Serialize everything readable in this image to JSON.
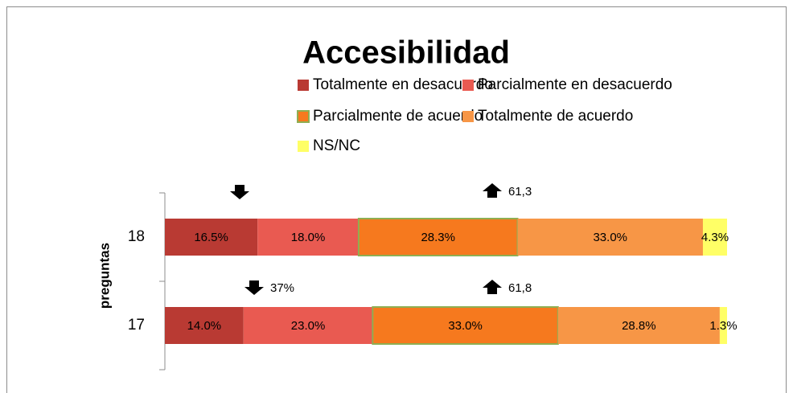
{
  "chart_data": {
    "type": "stacked_barh",
    "title": "Accesibilidad",
    "y_label": "preguntas",
    "categories": [
      "18",
      "17"
    ],
    "xlim": [
      0,
      100.1
    ],
    "legend": "top",
    "series": [
      {
        "name": "Totalmente en desacuerdo",
        "color": "#b93a33",
        "values": [
          16.5,
          14.0
        ],
        "value_labels": [
          "16.5%",
          "14.0%"
        ]
      },
      {
        "name": "Parcialmente en desacuerdo",
        "color": "#e95a51",
        "values": [
          18.0,
          23.0
        ],
        "value_labels": [
          "18.0%",
          "23.0%"
        ]
      },
      {
        "name": "Parcialmente de acuerdo",
        "color": "#f6791e",
        "edgecolor": "#8fae52",
        "values": [
          28.3,
          33.0
        ],
        "value_labels": [
          "28.3%",
          "33.0%"
        ]
      },
      {
        "name": "Totalmente de acuerdo",
        "color": "#f79646",
        "values": [
          33.0,
          28.8
        ],
        "value_labels": [
          "33.0%",
          "28.8%"
        ]
      },
      {
        "name": "NS/NC",
        "color": "#ffff66",
        "values": [
          4.3,
          1.3
        ],
        "value_labels": [
          "4.3%",
          "1.3%"
        ]
      }
    ],
    "annotations": [
      "61,3",
      "37%",
      "61,8"
    ]
  }
}
